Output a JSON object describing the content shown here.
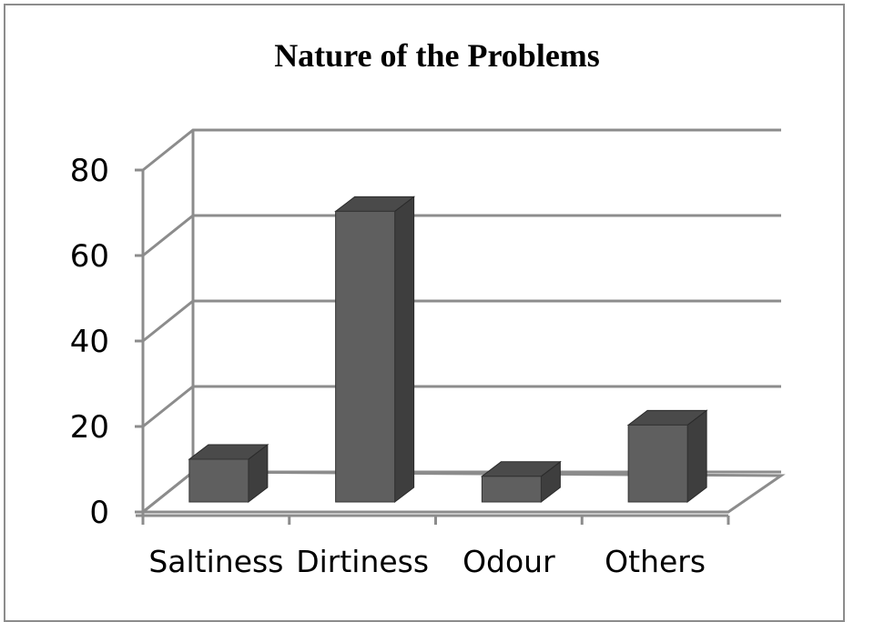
{
  "chart_data": {
    "type": "bar",
    "title": "Nature of the Problems",
    "categories": [
      "Saltiness",
      "Dirtiness",
      "Odour",
      "Others"
    ],
    "values": [
      10,
      68,
      6,
      18
    ],
    "yticks": [
      "0",
      "20",
      "40",
      "60",
      "80"
    ],
    "ylim": [
      0,
      80
    ],
    "grid": true,
    "three_d": true,
    "bar_color": "#5f5f5f",
    "xlabel": "",
    "ylabel": ""
  }
}
